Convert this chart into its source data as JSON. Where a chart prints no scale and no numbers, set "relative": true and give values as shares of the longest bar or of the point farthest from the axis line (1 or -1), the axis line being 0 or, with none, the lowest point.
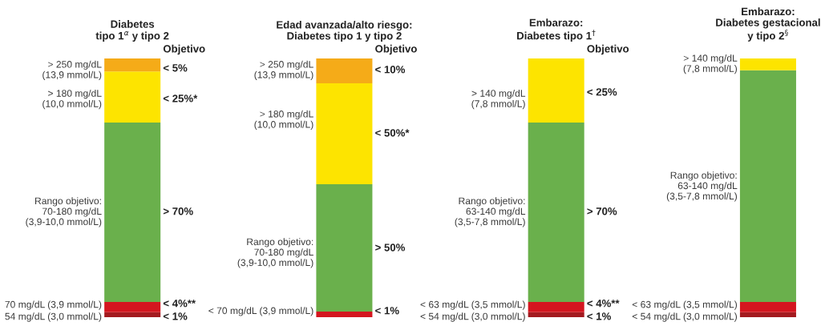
{
  "chart_data": {
    "type": "bar",
    "stacked": true,
    "relative": true,
    "categories": [
      "Diabetes\ntipo 1$^{α}$ y tipo 2",
      "Edad avanzada/alto riesgo:\nDiabetes tipo 1 y tipo 2",
      "Embarazo:\nDiabetes tipo 1$^{†}$",
      "Embarazo:\nDiabetes gestacional\ny tipo 2$^{§}$"
    ],
    "series": [
      {
        "color": "#a31a1f",
        "values": [
          0.019,
          null,
          0.019,
          0.019
        ]
      },
      {
        "color": "#d4161f",
        "values": [
          0.04,
          0.022,
          0.04,
          0.04
        ]
      },
      {
        "color": "#6ab04c",
        "values": [
          0.693,
          0.492,
          0.693,
          0.895
        ]
      },
      {
        "color": "#fde400",
        "values": [
          0.198,
          0.39,
          0.248,
          0.046
        ]
      },
      {
        "color": "#f5ab18",
        "values": [
          0.05,
          0.096,
          null,
          null
        ]
      }
    ],
    "annotations": [
      "Objetivo",
      "Objetivo",
      "Objetivo",
      "> 250 mg/dL\n(13,9 mmol/L)",
      "> 180 mg/dL\n(10,0 mmol/L)",
      "Rango objetivo:\n70-180 mg/dL\n(3,9-10,0 mmol/L)",
      "70 mg/dL (3,9 mmol/L)",
      "54 mg/dL (3,0 mmol/L)",
      "< 5%",
      "< 25%*",
      "> 70%",
      "< 4%**",
      "< 1%",
      "> 250 mg/dL\n(13,9 mmol/L)",
      "> 180 mg/dL\n(10,0 mmol/L)",
      "Rango objetivo:\n70-180 mg/dL\n(3,9-10,0 mmol/L)",
      "< 70 mg/dL (3,9 mmol/L)",
      "< 10%",
      "< 50%*",
      "> 50%",
      "< 1%",
      "> 140 mg/dL\n(7,8 mmol/L)",
      "Rango objetivo:\n63-140 mg/dL\n(3,5-7,8 mmol/L)",
      "< 63 mg/dL (3,5 mmol/L)",
      "< 54 mg/dL (3,0 mmol/L)",
      "< 25%",
      "> 70%",
      "< 4%**",
      "< 1%",
      "> 140 mg/dL\n(7,8 mmol/L)",
      "Rango objetivo:\n63-140 mg/dL\n(3,5-7,8 mmol/L)",
      "< 63 mg/dL (3,5 mmol/L)",
      "< 54 mg/dL (3,0 mmol/L)"
    ]
  }
}
